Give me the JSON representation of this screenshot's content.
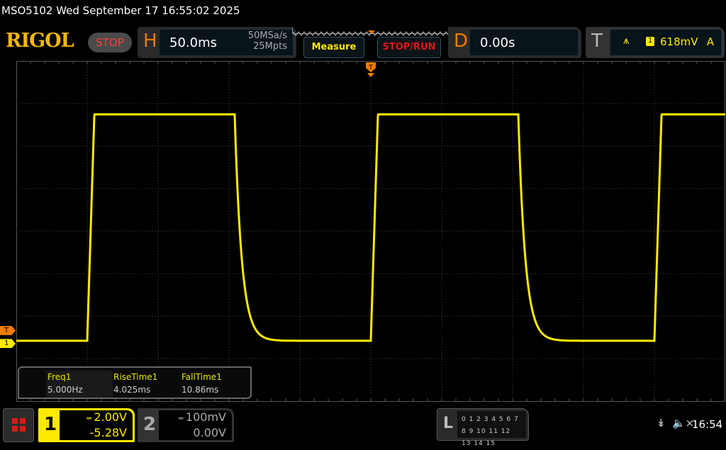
{
  "title": "MSO5102  Wed September 17 16:55:02 2025",
  "logo": "RIGOL",
  "run_state": "STOP",
  "horizontal": {
    "label": "H",
    "timebase": "50.0ms",
    "sample_rate": "50MSa/s",
    "memory_depth": "25Mpts"
  },
  "buttons": {
    "measure": "Measure",
    "stop_run": "STOP/RUN"
  },
  "delay": {
    "label": "D",
    "value": "0.00s"
  },
  "trigger": {
    "label": "T",
    "slope_icon": "rising-edge-icon",
    "source": "1",
    "level": "618mV",
    "mode": "A"
  },
  "markers": {
    "trigger": "T",
    "channel1": "1"
  },
  "measurements": [
    {
      "name": "Freq1",
      "value": "5.000Hz"
    },
    {
      "name": "RiseTime1",
      "value": "4.025ms"
    },
    {
      "name": "FallTime1",
      "value": "10.86ms"
    }
  ],
  "channel1": {
    "number": "1",
    "coupling_icon": "dc-coupling-icon",
    "scale": "2.00V",
    "offset": "-5.28V",
    "color": "#ffea00"
  },
  "channel2": {
    "number": "2",
    "coupling_icon": "dc-coupling-icon",
    "scale": "100mV",
    "offset": "0.00V"
  },
  "logic": {
    "label": "L",
    "row1": "0 1 2 3  4 5 6 7",
    "row2": "8 9 10 11 12 13 14 15"
  },
  "status": {
    "usb_icon": "usb-icon",
    "sound_icon": "speaker-muted-icon",
    "clock": "16:54"
  },
  "waveform": {
    "frequency_hz": 5,
    "high_v": 10.8,
    "low_v": 0.15,
    "duty_percent": 52,
    "rise_time_ms": 4.025,
    "fall_time_ms": 10.86,
    "time_per_div_ms": 50,
    "volts_per_div": 2,
    "offset_v": -5.28,
    "trigger_level_v": 0.618
  }
}
